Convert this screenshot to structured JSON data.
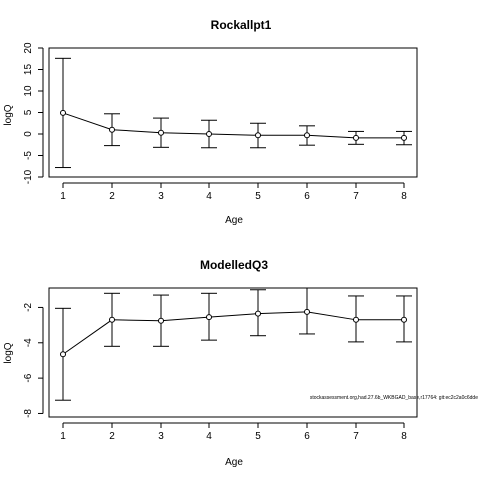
{
  "chart_data": [
    {
      "type": "scatter",
      "title": "Rockallpt1",
      "xlabel": "Age",
      "ylabel": "logQ",
      "x": [
        1,
        2,
        3,
        4,
        5,
        6,
        7,
        8
      ],
      "xticks": [
        "1",
        "2",
        "3",
        "4",
        "5",
        "6",
        "7",
        "8"
      ],
      "yticks": [
        "-10",
        "-5",
        "0",
        "5",
        "10",
        "15",
        "20"
      ],
      "xlim": [
        1,
        8
      ],
      "ylim": [
        -10,
        20
      ],
      "series": [
        {
          "values": [
            4.9,
            1.0,
            0.3,
            0.0,
            -0.3,
            -0.3,
            -0.9,
            -0.9
          ],
          "lower": [
            -7.8,
            -2.7,
            -3.1,
            -3.2,
            -3.2,
            -2.6,
            -2.4,
            -2.5
          ],
          "upper": [
            17.6,
            4.7,
            3.7,
            3.2,
            2.5,
            1.9,
            0.6,
            0.6
          ]
        }
      ],
      "grid": false
    },
    {
      "type": "scatter",
      "title": "ModelledQ3",
      "xlabel": "Age",
      "ylabel": "logQ",
      "x": [
        1,
        2,
        3,
        4,
        5,
        6,
        7,
        8
      ],
      "xticks": [
        "1",
        "2",
        "3",
        "4",
        "5",
        "6",
        "7",
        "8"
      ],
      "yticks": [
        "-8",
        "-6",
        "-4",
        "-2"
      ],
      "xlim": [
        1,
        8
      ],
      "ylim": [
        -8.2,
        -0.9
      ],
      "series": [
        {
          "values": [
            -4.65,
            -2.7,
            -2.75,
            -2.55,
            -2.35,
            -2.25,
            -2.7,
            -2.7
          ],
          "lower": [
            -7.25,
            -4.2,
            -4.2,
            -3.85,
            -3.6,
            -3.5,
            -3.95,
            -3.95
          ],
          "upper": [
            -2.05,
            -1.2,
            -1.3,
            -1.2,
            -1.0,
            -0.9,
            -1.35,
            -1.35
          ]
        }
      ],
      "grid": false
    }
  ],
  "footnote": "stockassessment.org,had.27.6b_WKBGAD_base,r17764: git:ec2c2a0c6dde"
}
